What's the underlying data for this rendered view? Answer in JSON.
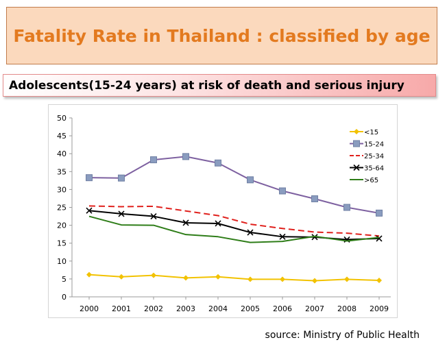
{
  "title": "Fatality Rate in Thailand : classified by age",
  "subtitle": "Adolescents(15-24 years) at risk of death and serious injury",
  "source": "source: Ministry of Public Health",
  "chart_data": {
    "type": "line",
    "categories": [
      "2000",
      "2001",
      "2002",
      "2003",
      "2004",
      "2005",
      "2006",
      "2007",
      "2008",
      "2009"
    ],
    "ylim": [
      0,
      50
    ],
    "yticks": [
      0,
      5,
      10,
      15,
      20,
      25,
      30,
      35,
      40,
      45,
      50
    ],
    "grid": false,
    "legend_position": "top-right",
    "series": [
      {
        "name": "<15",
        "color": "#f2c200",
        "marker": "diamond",
        "values": [
          6.2,
          5.6,
          6.0,
          5.3,
          5.6,
          4.9,
          4.9,
          4.5,
          4.9,
          4.6
        ]
      },
      {
        "name": "15-24",
        "color": "#7d60a0",
        "marker": "square",
        "values": [
          33.3,
          33.2,
          38.3,
          39.2,
          37.4,
          32.7,
          29.6,
          27.4,
          25.0,
          23.4
        ]
      },
      {
        "name": "25-34",
        "color": "#e0201c",
        "marker": "none",
        "dashed": true,
        "values": [
          25.4,
          25.2,
          25.3,
          24.0,
          22.7,
          20.3,
          19.1,
          18.1,
          17.8,
          17.0
        ]
      },
      {
        "name": "35-64",
        "color": "#000000",
        "marker": "x",
        "values": [
          24.1,
          23.2,
          22.5,
          20.7,
          20.5,
          18.0,
          16.8,
          16.7,
          16.0,
          16.3
        ]
      },
      {
        "name": ">65",
        "color": "#2e7d18",
        "marker": "none",
        "values": [
          22.5,
          20.1,
          20.0,
          17.4,
          16.8,
          15.2,
          15.5,
          16.9,
          15.6,
          16.6
        ]
      }
    ]
  }
}
